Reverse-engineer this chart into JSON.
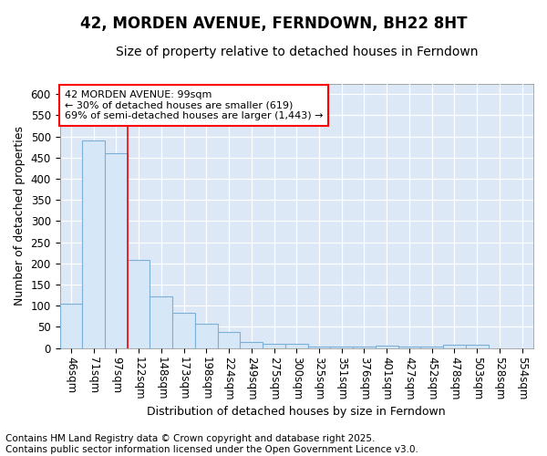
{
  "title": "42, MORDEN AVENUE, FERNDOWN, BH22 8HT",
  "subtitle": "Size of property relative to detached houses in Ferndown",
  "xlabel": "Distribution of detached houses by size in Ferndown",
  "ylabel": "Number of detached properties",
  "footer_line1": "Contains HM Land Registry data © Crown copyright and database right 2025.",
  "footer_line2": "Contains public sector information licensed under the Open Government Licence v3.0.",
  "annotation_line1": "42 MORDEN AVENUE: 99sqm",
  "annotation_line2": "← 30% of detached houses are smaller (619)",
  "annotation_line3": "69% of semi-detached houses are larger (1,443) →",
  "bar_labels": [
    "46sqm",
    "71sqm",
    "97sqm",
    "122sqm",
    "148sqm",
    "173sqm",
    "198sqm",
    "224sqm",
    "249sqm",
    "275sqm",
    "300sqm",
    "325sqm",
    "351sqm",
    "376sqm",
    "401sqm",
    "427sqm",
    "452sqm",
    "478sqm",
    "503sqm",
    "528sqm",
    "554sqm"
  ],
  "bar_values": [
    105,
    490,
    460,
    208,
    123,
    83,
    57,
    38,
    15,
    10,
    10,
    3,
    3,
    3,
    5,
    3,
    3,
    7,
    7,
    0,
    0
  ],
  "bar_color": "#d6e8f7",
  "bar_edge_color": "#7ab0d8",
  "red_line_x": 2,
  "ylim": [
    0,
    625
  ],
  "yticks": [
    0,
    50,
    100,
    150,
    200,
    250,
    300,
    350,
    400,
    450,
    500,
    550,
    600
  ],
  "bg_color": "#dce8f5",
  "fig_bg_color": "#ffffff",
  "title_fontsize": 12,
  "subtitle_fontsize": 10,
  "axis_label_fontsize": 9,
  "tick_fontsize": 8.5,
  "footer_fontsize": 7.5,
  "annotation_fontsize": 8
}
